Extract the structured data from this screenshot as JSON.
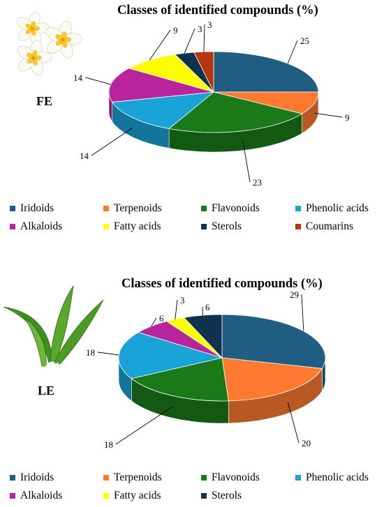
{
  "panels": [
    {
      "sample": "FE",
      "title": "Classes of identified compounds (%)",
      "illustration": "frangipani-flowers-icon",
      "chart_data": {
        "type": "pie",
        "title": "Classes of identified compounds (%)",
        "categories": [
          "Iridoids",
          "Terpenoids",
          "Flavonoids",
          "Phenolic acids",
          "Alkaloids",
          "Fatty acids",
          "Sterols",
          "Coumarins"
        ],
        "values": [
          25,
          9,
          23,
          14,
          14,
          9,
          3,
          3
        ],
        "legend_position": "bottom"
      }
    },
    {
      "sample": "LE",
      "title": "Classes of identified compounds (%)",
      "illustration": "leaves-icon",
      "chart_data": {
        "type": "pie",
        "title": "Classes of identified compounds (%)",
        "categories": [
          "Iridoids",
          "Terpenoids",
          "Flavonoids",
          "Phenolic acids",
          "Alkaloids",
          "Fatty acids",
          "Sterols"
        ],
        "values": [
          29,
          20,
          18,
          18,
          6,
          3,
          6
        ],
        "legend_position": "bottom"
      }
    }
  ],
  "colors": {
    "Iridoids": "#1f5d82",
    "Terpenoids": "#ff7a30",
    "Flavonoids": "#1a7a1a",
    "Phenolic acids": "#1aa3d6",
    "Alkaloids": "#b8249c",
    "Fatty acids": "#ffff00",
    "Sterols": "#10324e",
    "Coumarins": "#b5360c"
  }
}
